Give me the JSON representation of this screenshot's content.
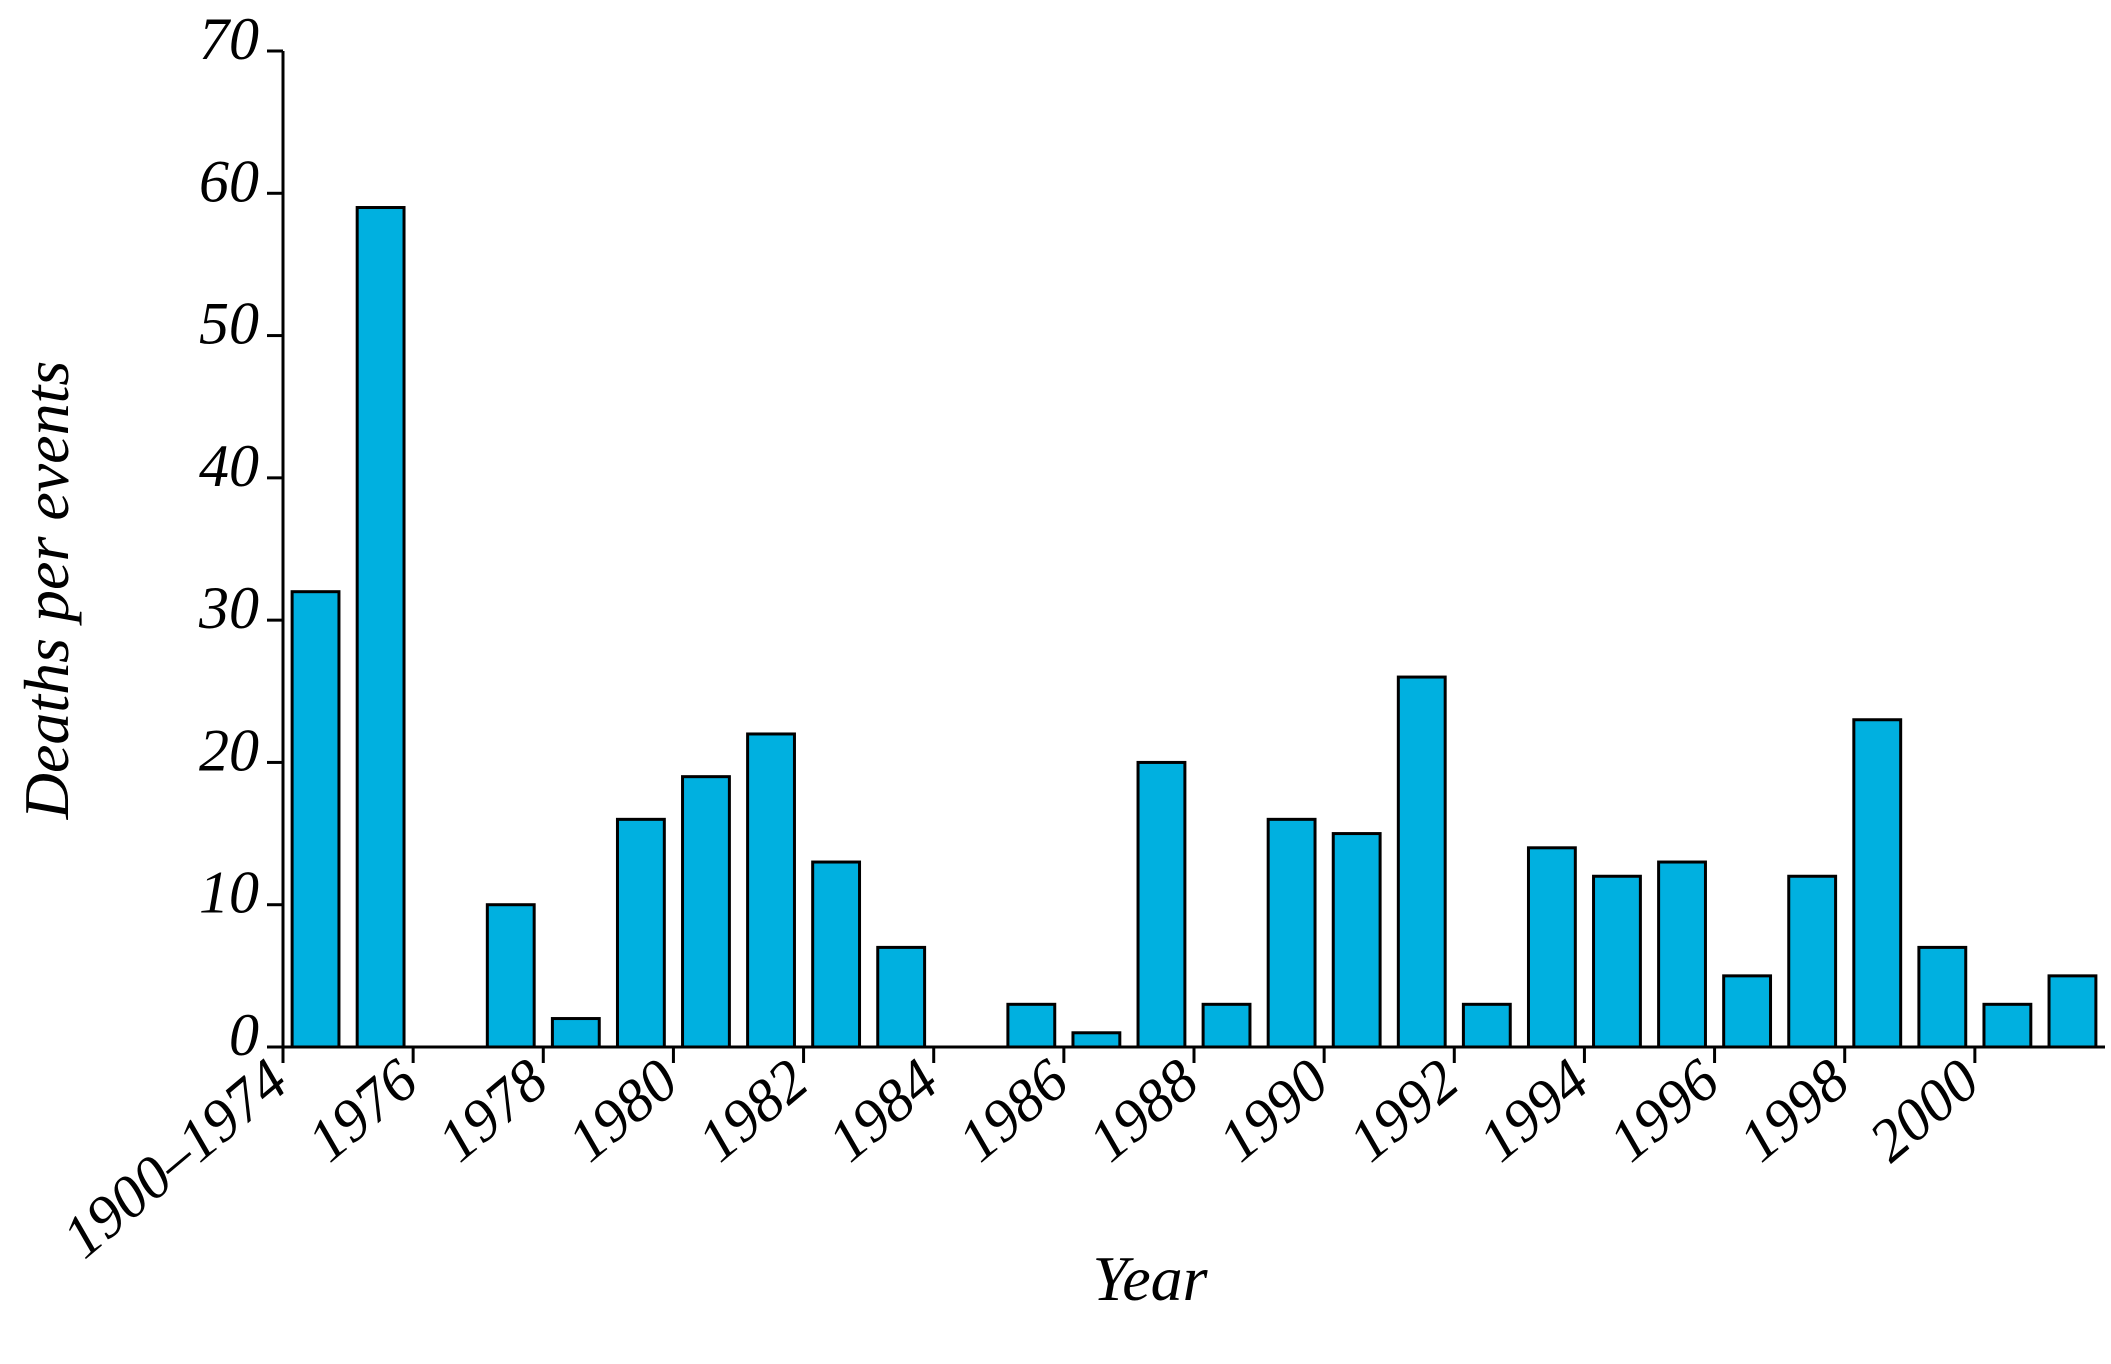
{
  "chart_data": {
    "type": "bar",
    "x_label": "Year",
    "y_label": "Deaths per events",
    "categories": [
      "1900–1974",
      null,
      "1976",
      null,
      "1978",
      null,
      "1980",
      null,
      "1982",
      null,
      "1984",
      null,
      "1986",
      null,
      "1988",
      null,
      "1990",
      null,
      "1992",
      null,
      "1994",
      null,
      "1996",
      null,
      "1998",
      null,
      "2000",
      null
    ],
    "values": [
      32,
      59,
      0,
      10,
      2,
      16,
      19,
      22,
      13,
      7,
      0,
      3,
      1,
      20,
      3,
      16,
      15,
      26,
      3,
      14,
      12,
      13,
      5,
      12,
      23,
      7,
      3,
      5
    ],
    "color": "#00b0e0",
    "ylim": [
      0,
      70
    ],
    "yticks": [
      0,
      10,
      20,
      30,
      40,
      50,
      60,
      70
    ],
    "grid": false
  }
}
